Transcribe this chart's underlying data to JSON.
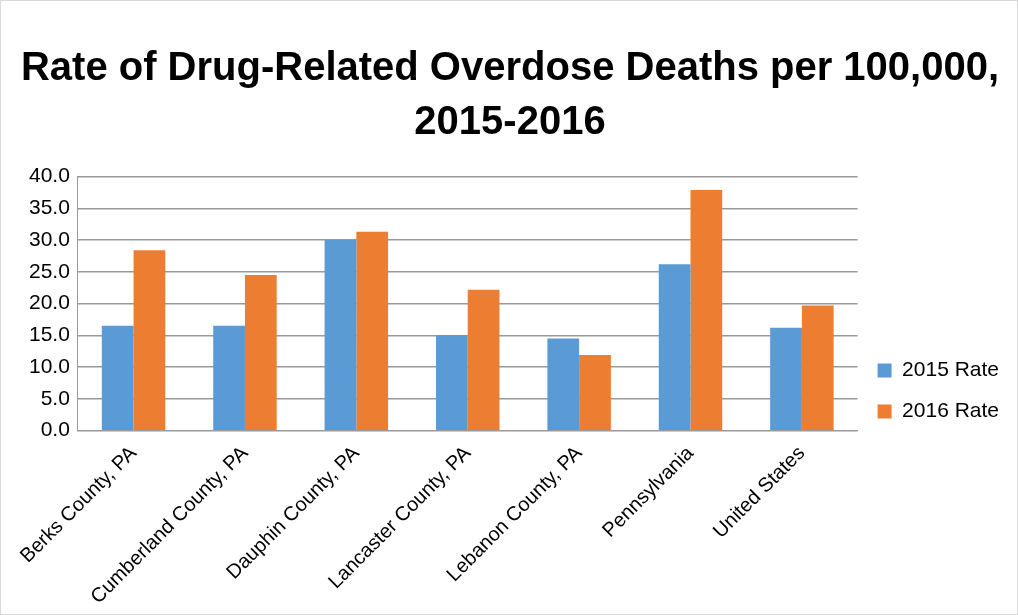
{
  "chart_data": {
    "type": "bar",
    "title": "Rate of Drug-Related Overdose Deaths per 100,000, 2015-2016",
    "categories": [
      "Berks County, PA",
      "Cumberland County, PA",
      "Dauphin County, PA",
      "Lancaster County, PA",
      "Lebanon County, PA",
      "Pennsylvania",
      "United States"
    ],
    "series": [
      {
        "name": "2015 Rate",
        "color": "#5b9bd5",
        "values": [
          16.5,
          16.5,
          30.0,
          15.0,
          14.5,
          26.2,
          16.2
        ]
      },
      {
        "name": "2016 Rate",
        "color": "#ed7d31",
        "values": [
          28.4,
          24.5,
          31.3,
          22.2,
          11.9,
          37.9,
          19.7
        ]
      }
    ],
    "ylim": [
      0,
      40
    ],
    "yticks": [
      {
        "value": 0,
        "label": "0.0"
      },
      {
        "value": 5,
        "label": "5.0"
      },
      {
        "value": 10,
        "label": "10.0"
      },
      {
        "value": 15,
        "label": "15.0"
      },
      {
        "value": 20,
        "label": "20.0"
      },
      {
        "value": 25,
        "label": "25.0"
      },
      {
        "value": 30,
        "label": "30.0"
      },
      {
        "value": 35,
        "label": "35.0"
      },
      {
        "value": 40,
        "label": "40.0"
      }
    ],
    "grid": "y",
    "legend": "right"
  }
}
